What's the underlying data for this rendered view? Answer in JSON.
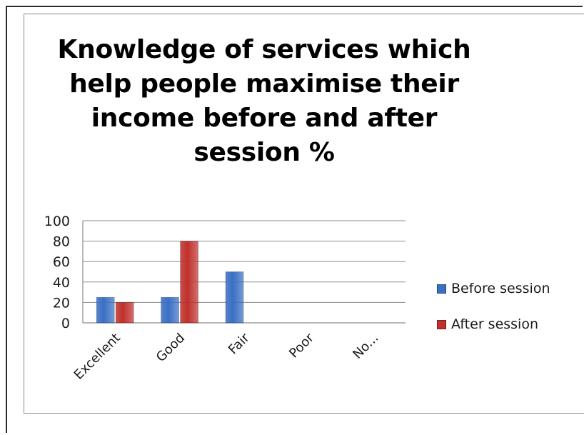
{
  "colors": {
    "before": "#3a6fc4",
    "after": "#c0302c",
    "grid": "#8c8c8c",
    "axis": "#8c8c8c"
  },
  "chart_data": {
    "type": "bar",
    "title": "Knowledge of services which help people maximise their income before and after session %",
    "xlabel": "",
    "ylabel": "",
    "ylim": [
      0,
      100
    ],
    "yticks": [
      0,
      20,
      40,
      60,
      80,
      100
    ],
    "categories": [
      "Excellent",
      "Good",
      "Fair",
      "Poor",
      "No..."
    ],
    "series": [
      {
        "name": "Before session",
        "values": [
          25,
          25,
          50,
          0,
          0
        ]
      },
      {
        "name": "After session",
        "values": [
          20,
          80,
          0,
          0,
          0
        ]
      }
    ],
    "legend_position": "right",
    "grid": true
  }
}
